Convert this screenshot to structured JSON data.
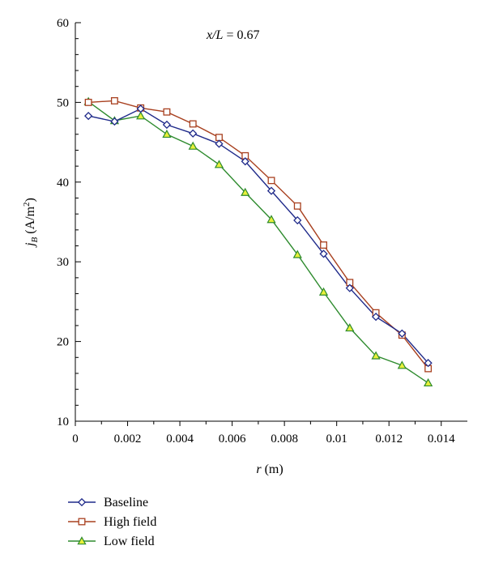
{
  "chart_data": {
    "type": "line",
    "title": "",
    "annotation": {
      "var": "x/L",
      "text": " = 0.67"
    },
    "xlabel": {
      "var": "r",
      "unit": " (m)"
    },
    "ylabel": {
      "var": "j",
      "sub": "B",
      "unit": " (A/m",
      "sup": "2",
      "close": ")"
    },
    "xlim": [
      0,
      0.015
    ],
    "ylim": [
      10,
      60
    ],
    "xticks": [
      0,
      0.002,
      0.004,
      0.006,
      0.008,
      0.01,
      0.012,
      0.014
    ],
    "xtick_labels": [
      "0",
      "0.002",
      "0.004",
      "0.006",
      "0.008",
      "0.01",
      "0.012",
      "0.014"
    ],
    "yticks": [
      10,
      20,
      30,
      40,
      50,
      60
    ],
    "ytick_labels": [
      "10",
      "20",
      "30",
      "40",
      "50",
      "60"
    ],
    "grid": false,
    "legend_position": "bottom-left, below plot",
    "x": [
      0.0005,
      0.0015,
      0.0025,
      0.0035,
      0.0045,
      0.0055,
      0.0065,
      0.0075,
      0.0085,
      0.0095,
      0.0105,
      0.0115,
      0.0125,
      0.0135
    ],
    "series": [
      {
        "name": "Baseline",
        "marker": "diamond",
        "color": "#1f2a8a",
        "values": [
          48.3,
          47.6,
          49.2,
          47.2,
          46.1,
          44.8,
          42.6,
          38.9,
          35.2,
          31.0,
          26.7,
          23.1,
          21.0,
          17.3
        ]
      },
      {
        "name": "High field",
        "marker": "square",
        "color": "#a8401f",
        "values": [
          50.0,
          50.2,
          49.3,
          48.8,
          47.3,
          45.6,
          43.3,
          40.2,
          37.0,
          32.1,
          27.4,
          23.6,
          20.8,
          16.6
        ]
      },
      {
        "name": "Low field",
        "marker": "triangle",
        "color": "#2e8b2e",
        "fill": "#e8f03a",
        "values": [
          50.1,
          47.7,
          48.3,
          46.0,
          44.5,
          42.2,
          38.7,
          35.3,
          30.9,
          26.2,
          21.7,
          18.2,
          17.0,
          14.8
        ]
      }
    ]
  }
}
